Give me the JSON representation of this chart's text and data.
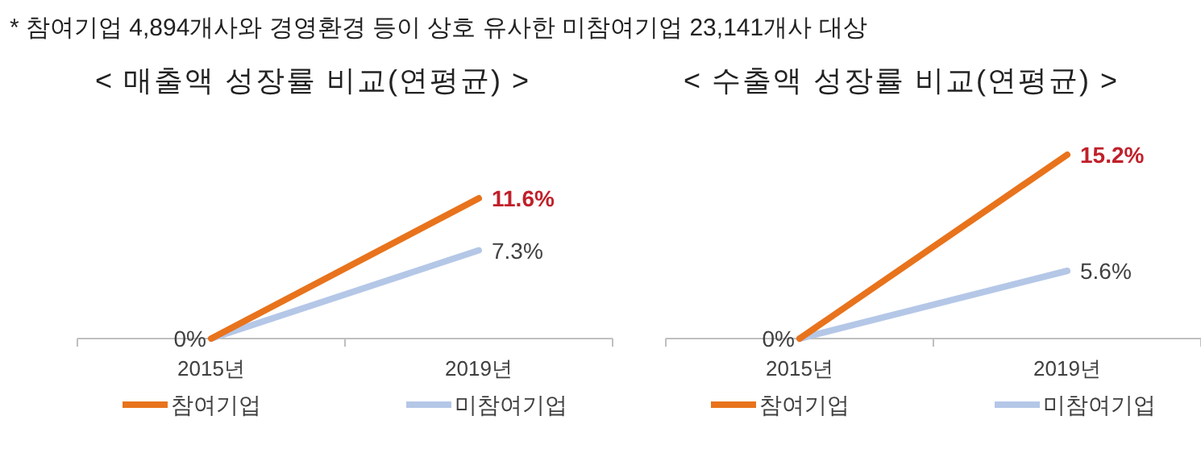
{
  "chart_data": [
    {
      "type": "line",
      "title": "< 매출액 성장률 비교(연평균) >",
      "annotations": [
        "* 참여기업 4,894개사와 경영환경 등이 상호 유사한 미참여기업 23,141개사 대상"
      ],
      "categories": [
        "2015년",
        "2019년"
      ],
      "legend": "bottom",
      "grid": false,
      "marker": "none",
      "line_style": "solid",
      "series": [
        {
          "name": "참여기업",
          "color": "#e8731c",
          "values": [
            0,
            11.6
          ],
          "value_labels": [
            "0%",
            "11.6%"
          ]
        },
        {
          "name": "미참여기업",
          "color": "#b4c7e7",
          "values": [
            0,
            7.3
          ],
          "value_labels": [
            null,
            "7.3%"
          ]
        }
      ]
    },
    {
      "type": "line",
      "title": "< 수출액 성장률 비교(연평균) >",
      "categories": [
        "2015년",
        "2019년"
      ],
      "legend": "bottom",
      "grid": false,
      "marker": "none",
      "line_style": "solid",
      "series": [
        {
          "name": "참여기업",
          "color": "#e8731c",
          "values": [
            0,
            15.2
          ],
          "value_labels": [
            "0%",
            "15.2%"
          ]
        },
        {
          "name": "미참여기업",
          "color": "#b4c7e7",
          "values": [
            0,
            5.6
          ],
          "value_labels": [
            null,
            "5.6%"
          ]
        }
      ]
    }
  ]
}
